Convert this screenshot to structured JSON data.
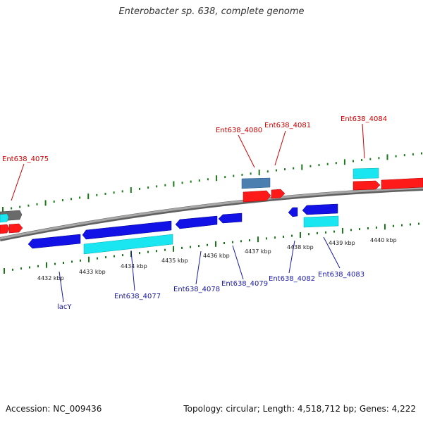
{
  "title": "Enterobacter sp. 638, complete genome",
  "footer": {
    "accession": "Accession: NC_009436",
    "topology": "Topology: circular; Length: 4,518,712 bp; Genes: 4,222"
  },
  "colors": {
    "backbone": "#8c8c8c",
    "tick": "#1a7a1a",
    "label_forward": "#cc0000",
    "label_reverse": "#1a1aa6",
    "gene_forward": "#ff1a1a",
    "gene_reverse": "#1212e6",
    "gene_cyan": "#19e6f0",
    "gene_gray": "#6a6a6a",
    "gene_steel": "#4a7fb0"
  },
  "kbp_labels": [
    "4432 kbp",
    "4433 kbp",
    "4434 kbp",
    "4435 kbp",
    "4436 kbp",
    "4437 kbp",
    "4438 kbp",
    "4439 kbp",
    "4440 kbp"
  ],
  "forward_gene_labels": [
    "Ent638_4075",
    "Ent638_4080",
    "Ent638_4081",
    "Ent638_4084"
  ],
  "reverse_gene_labels": [
    "lacY",
    "Ent638_4077",
    "Ent638_4078",
    "Ent638_4079",
    "Ent638_4082",
    "Ent638_4083"
  ]
}
